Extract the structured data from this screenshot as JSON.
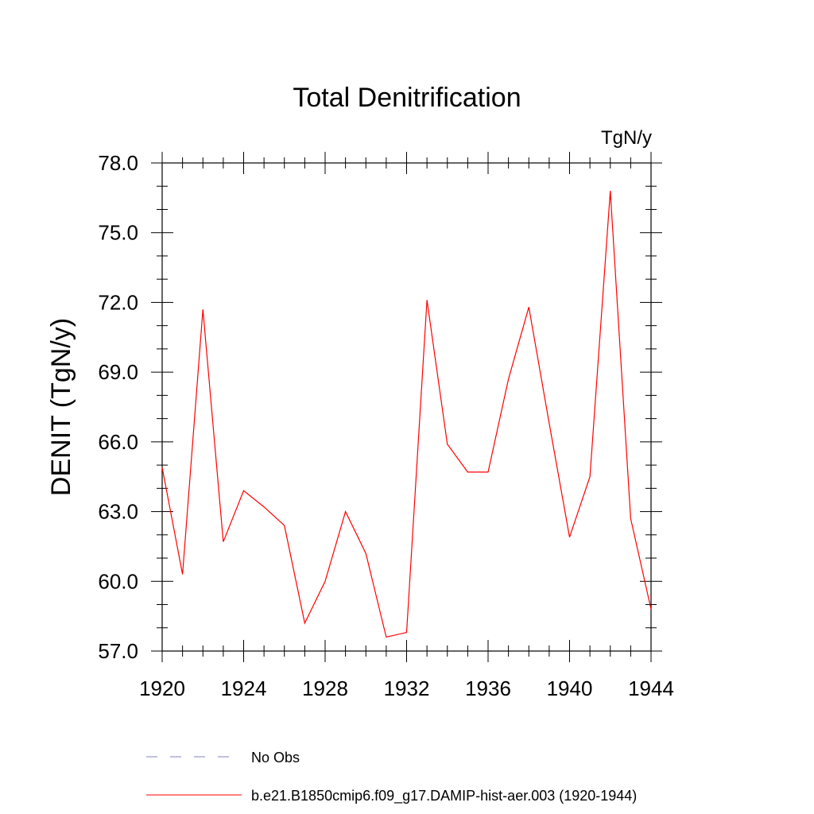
{
  "chart_data": {
    "type": "line",
    "title": "Total Denitrification",
    "units_label": "TgN/y",
    "ylabel": "DENIT  (TgN/y)",
    "xlabel": "",
    "xlim": [
      1920,
      1944
    ],
    "ylim": [
      57.0,
      78.0
    ],
    "x_ticks": [
      "1920",
      "1924",
      "1928",
      "1932",
      "1936",
      "1940",
      "1944"
    ],
    "y_ticks": [
      "57.0",
      "60.0",
      "63.0",
      "66.0",
      "69.0",
      "72.0",
      "75.0",
      "78.0"
    ],
    "grid": false,
    "legend_position": "bottom",
    "series": [
      {
        "name": "b.e21.B1850cmip6.f09_g17.DAMIP-hist-aer.003 (1920-1944)",
        "color": "#ff0000",
        "style": "solid",
        "x": [
          1920,
          1921,
          1922,
          1923,
          1924,
          1925,
          1926,
          1927,
          1928,
          1929,
          1930,
          1931,
          1932,
          1933,
          1934,
          1935,
          1936,
          1937,
          1938,
          1939,
          1940,
          1941,
          1942,
          1943,
          1944
        ],
        "y": [
          64.9,
          60.3,
          71.7,
          61.7,
          63.9,
          63.2,
          62.4,
          58.2,
          60.0,
          63.0,
          61.2,
          57.6,
          57.8,
          72.1,
          65.9,
          64.7,
          64.7,
          68.7,
          71.8,
          66.8,
          61.9,
          64.5,
          76.8,
          62.7,
          58.8
        ]
      },
      {
        "name": "No Obs",
        "color": "#8080c0",
        "style": "dashed",
        "x": [],
        "y": []
      }
    ]
  }
}
